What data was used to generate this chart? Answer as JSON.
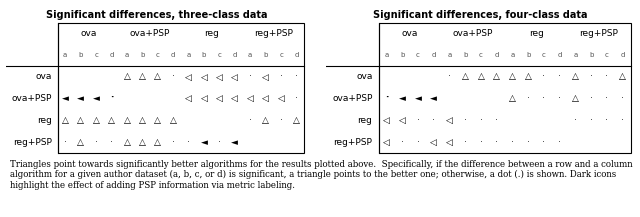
{
  "title_left": "Significant differences, three-class data",
  "title_right": "Significant differences, four-class data",
  "col_headers": [
    "ova",
    "ova+PSP",
    "reg",
    "reg+PSP"
  ],
  "row_headers": [
    "ova",
    "ova+PSP",
    "reg",
    "reg+PSP"
  ],
  "table3": [
    [
      "",
      "△△△·",
      "◁◁◁◁",
      "·◁··"
    ],
    [
      "◄◄◄·",
      "",
      "◁◁◁◁",
      "◁◁◁·"
    ],
    [
      "△△△△",
      "△△△△",
      "",
      "·△·△"
    ],
    [
      "·△··",
      "△△△·",
      "·◄·◄",
      ""
    ]
  ],
  "table3_dark": [
    [
      false,
      false,
      false,
      false
    ],
    [
      true,
      false,
      false,
      false
    ],
    [
      false,
      false,
      false,
      false
    ],
    [
      false,
      false,
      false,
      false
    ]
  ],
  "table4": [
    [
      "",
      "·△△△",
      "△△··",
      "△··△"
    ],
    [
      "·◄◄◄",
      "",
      "△···",
      "△···"
    ],
    [
      "◁◁··",
      "◁···",
      "",
      "····"
    ],
    [
      "◁··◁",
      "◁···",
      "····",
      ""
    ]
  ],
  "table4_dark": [
    [
      false,
      false,
      false,
      false
    ],
    [
      true,
      false,
      false,
      false
    ],
    [
      false,
      false,
      false,
      false
    ],
    [
      false,
      false,
      false,
      false
    ]
  ],
  "caption": "Triangles point towards significantly better algorithms for the results plotted above.  Specifically, if the difference between a row and a column algorithm for a given author dataset (a, b, c, or d) is significant, a triangle points to the better one; otherwise, a dot (.) is shown. Dark icons highlight the effect of adding PSP information via metric labeling.",
  "fig_width": 6.4,
  "fig_height": 2.17,
  "dpi": 100
}
